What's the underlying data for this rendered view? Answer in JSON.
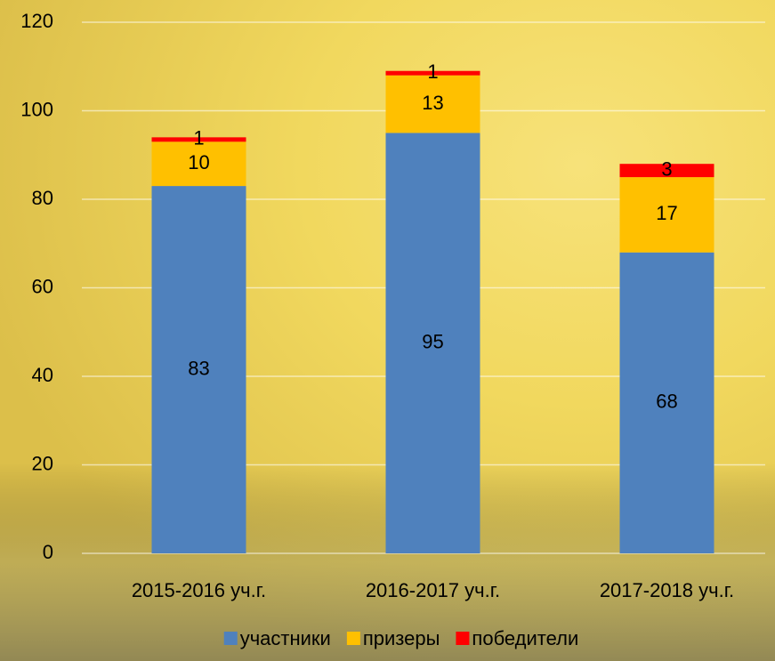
{
  "chart_data": {
    "type": "stacked_bar",
    "categories": [
      "2015-2016 уч.г.",
      "2016-2017 уч.г.",
      "2017-2018 уч.г."
    ],
    "series": [
      {
        "name": "участники",
        "color": "#4f81bd",
        "values": [
          83,
          95,
          68
        ]
      },
      {
        "name": "призеры",
        "color": "#ffc000",
        "values": [
          10,
          13,
          17
        ]
      },
      {
        "name": "победители",
        "color": "#ff0000",
        "values": [
          1,
          1,
          3
        ]
      }
    ],
    "ylim": [
      0,
      120
    ],
    "yticks": [
      0,
      20,
      40,
      60,
      80,
      100,
      120
    ],
    "grid": true,
    "legend": "bottom"
  }
}
